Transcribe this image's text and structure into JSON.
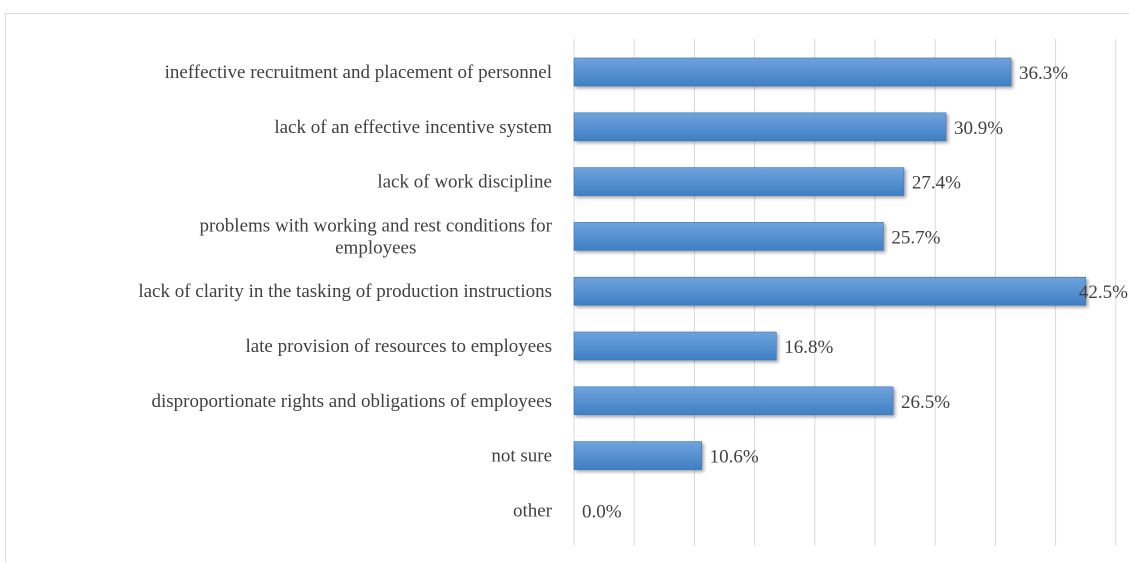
{
  "chart_data": {
    "type": "bar",
    "orientation": "horizontal",
    "categories": [
      [
        "ineffective recruitment and placement of personnel"
      ],
      [
        "lack of an effective incentive system"
      ],
      [
        "lack of work discipline"
      ],
      [
        "problems with working and rest conditions for",
        "employees"
      ],
      [
        "lack of clarity in the tasking of production instructions"
      ],
      [
        "late provision of resources to employees"
      ],
      [
        "disproportionate rights and obligations of employees"
      ],
      [
        "not sure"
      ],
      [
        "other"
      ]
    ],
    "values": [
      36.3,
      30.9,
      27.4,
      25.7,
      42.5,
      16.8,
      26.5,
      10.6,
      0.0
    ],
    "value_labels": [
      "36.3%",
      "30.9%",
      "27.4%",
      "25.7%",
      "42.5%",
      "16.8%",
      "26.5%",
      "10.6%",
      "0.0%"
    ],
    "xlim": [
      0,
      45
    ],
    "x_gridline_step": 5,
    "grid": true,
    "legend": "none",
    "colors": {
      "bar_top": "#6fa3dc",
      "bar_bottom": "#3f7fc4",
      "bar_stroke": "#3a72b0",
      "gridline": "#d9d9d9",
      "text": "#404040"
    }
  }
}
